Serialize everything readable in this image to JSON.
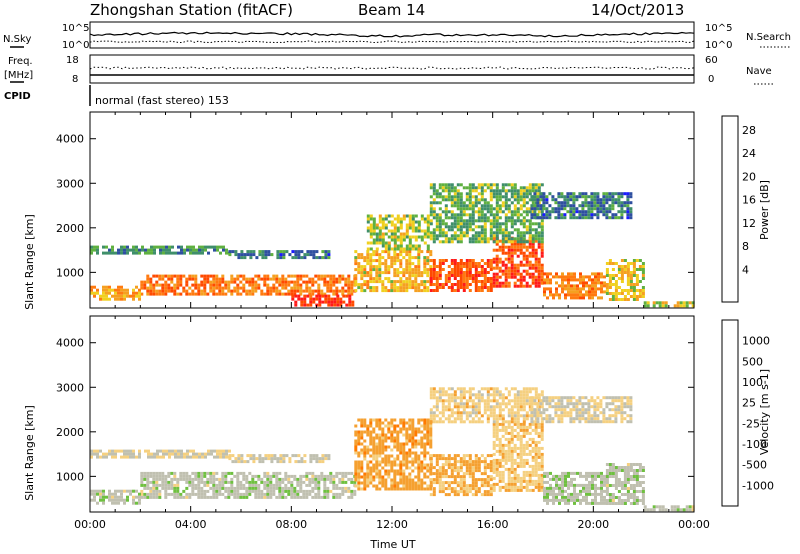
{
  "header": {
    "station": "Zhongshan Station (fitACF)",
    "beam": "Beam 14",
    "date": "14/Oct/2013"
  },
  "housekeeping": {
    "nsky_label": "N.Sky",
    "nsearch_label": "N.Search",
    "noise_ticks_left": [
      "10^5",
      "10^0"
    ],
    "noise_ticks_right": [
      "10^5",
      "10^0"
    ],
    "freq_label": "Freq.",
    "freq_unit": "[MHz]",
    "freq_ticks": [
      "18",
      "8"
    ],
    "nave_label": "Nave",
    "nave_ticks": [
      "60",
      "0"
    ],
    "cpid_label": "CPID",
    "cpid_text": "normal (fast stereo) 153"
  },
  "time_axis": {
    "xlabel": "Time UT",
    "ticks": [
      "00:00",
      "04:00",
      "08:00",
      "12:00",
      "16:00",
      "20:00",
      "00:00"
    ]
  },
  "colors": {
    "power_scale": [
      "#1a1aff",
      "#2e4fa0",
      "#3f8f6a",
      "#5fb040",
      "#f0d020",
      "#f5a020",
      "#ff7a10",
      "#ff4a00",
      "#ff1a1a"
    ],
    "velocity_scale": [
      "#ff1010",
      "#ff4a10",
      "#ff7a00",
      "#f5a030",
      "#f5d080",
      "#c0c0b0",
      "#6fc040",
      "#3f8f5a",
      "#2c6f8a",
      "#1c3fb0"
    ]
  },
  "chart_data": [
    {
      "type": "heatmap",
      "name": "power",
      "title": "",
      "xlabel": "Time UT",
      "ylabel": "Slant Range [km]",
      "xlim": [
        0,
        24
      ],
      "ylim": [
        200,
        4600
      ],
      "yticks": [
        1000,
        2000,
        3000,
        4000
      ],
      "colorbar": {
        "label": "Power [dB]",
        "ticks": [
          "28",
          "24",
          "20",
          "16",
          "12",
          "8",
          "4"
        ],
        "range": [
          0,
          30
        ]
      },
      "grid": false,
      "regions": [
        {
          "t": [
            0.0,
            5.5
          ],
          "r": [
            1400,
            1600
          ],
          "value": 9
        },
        {
          "t": [
            5.5,
            9.5
          ],
          "r": [
            1350,
            1500
          ],
          "value": 7
        },
        {
          "t": [
            2.0,
            10.5
          ],
          "r": [
            500,
            950
          ],
          "value": 22
        },
        {
          "t": [
            0.0,
            2.0
          ],
          "r": [
            400,
            700
          ],
          "value": 18
        },
        {
          "t": [
            8.0,
            10.5
          ],
          "r": [
            250,
            500
          ],
          "value": 27
        },
        {
          "t": [
            10.5,
            13.5
          ],
          "r": [
            600,
            1500
          ],
          "value": 17
        },
        {
          "t": [
            11.0,
            13.5
          ],
          "r": [
            1500,
            2300
          ],
          "value": 13
        },
        {
          "t": [
            13.5,
            16.0
          ],
          "r": [
            600,
            1300
          ],
          "value": 24
        },
        {
          "t": [
            16.0,
            18.0
          ],
          "r": [
            700,
            1800
          ],
          "value": 25
        },
        {
          "t": [
            13.5,
            18.0
          ],
          "r": [
            1700,
            3000
          ],
          "value": 11
        },
        {
          "t": [
            18.0,
            20.5
          ],
          "r": [
            400,
            1000
          ],
          "value": 21
        },
        {
          "t": [
            17.5,
            21.5
          ],
          "r": [
            2200,
            2800
          ],
          "value": 7
        },
        {
          "t": [
            20.5,
            22.0
          ],
          "r": [
            400,
            1300
          ],
          "value": 16
        },
        {
          "t": [
            22.0,
            24.0
          ],
          "r": [
            250,
            350
          ],
          "value": 14
        }
      ]
    },
    {
      "type": "heatmap",
      "name": "velocity",
      "title": "",
      "xlabel": "Time UT",
      "ylabel": "Slant Range [km]",
      "xlim": [
        0,
        24
      ],
      "ylim": [
        200,
        4600
      ],
      "yticks": [
        1000,
        2000,
        3000,
        4000
      ],
      "colorbar": {
        "label": "Velocity [m s-1]",
        "ticks": [
          "1000",
          "500",
          "100",
          "25",
          "-25",
          "-100",
          "-500",
          "-1000"
        ],
        "range": [
          -1000,
          1000
        ]
      },
      "grid": false,
      "regions": [
        {
          "t": [
            0.0,
            5.5
          ],
          "r": [
            1400,
            1600
          ],
          "value": 0
        },
        {
          "t": [
            5.5,
            9.5
          ],
          "r": [
            1350,
            1500
          ],
          "value": 0
        },
        {
          "t": [
            2.0,
            10.5
          ],
          "r": [
            500,
            1100
          ],
          "value": 120
        },
        {
          "t": [
            0.0,
            2.0
          ],
          "r": [
            400,
            700
          ],
          "value": 110
        },
        {
          "t": [
            10.5,
            13.5
          ],
          "r": [
            700,
            2300
          ],
          "value": -300
        },
        {
          "t": [
            13.5,
            16.0
          ],
          "r": [
            600,
            1500
          ],
          "value": -250
        },
        {
          "t": [
            16.0,
            18.0
          ],
          "r": [
            700,
            2200
          ],
          "value": -130
        },
        {
          "t": [
            13.5,
            18.0
          ],
          "r": [
            2200,
            3000
          ],
          "value": -100
        },
        {
          "t": [
            18.0,
            20.5
          ],
          "r": [
            400,
            1100
          ],
          "value": 130
        },
        {
          "t": [
            17.5,
            21.5
          ],
          "r": [
            2200,
            2800
          ],
          "value": 15
        },
        {
          "t": [
            20.5,
            22.0
          ],
          "r": [
            400,
            1300
          ],
          "value": 120
        },
        {
          "t": [
            22.0,
            24.0
          ],
          "r": [
            250,
            350
          ],
          "value": 110
        }
      ]
    }
  ]
}
